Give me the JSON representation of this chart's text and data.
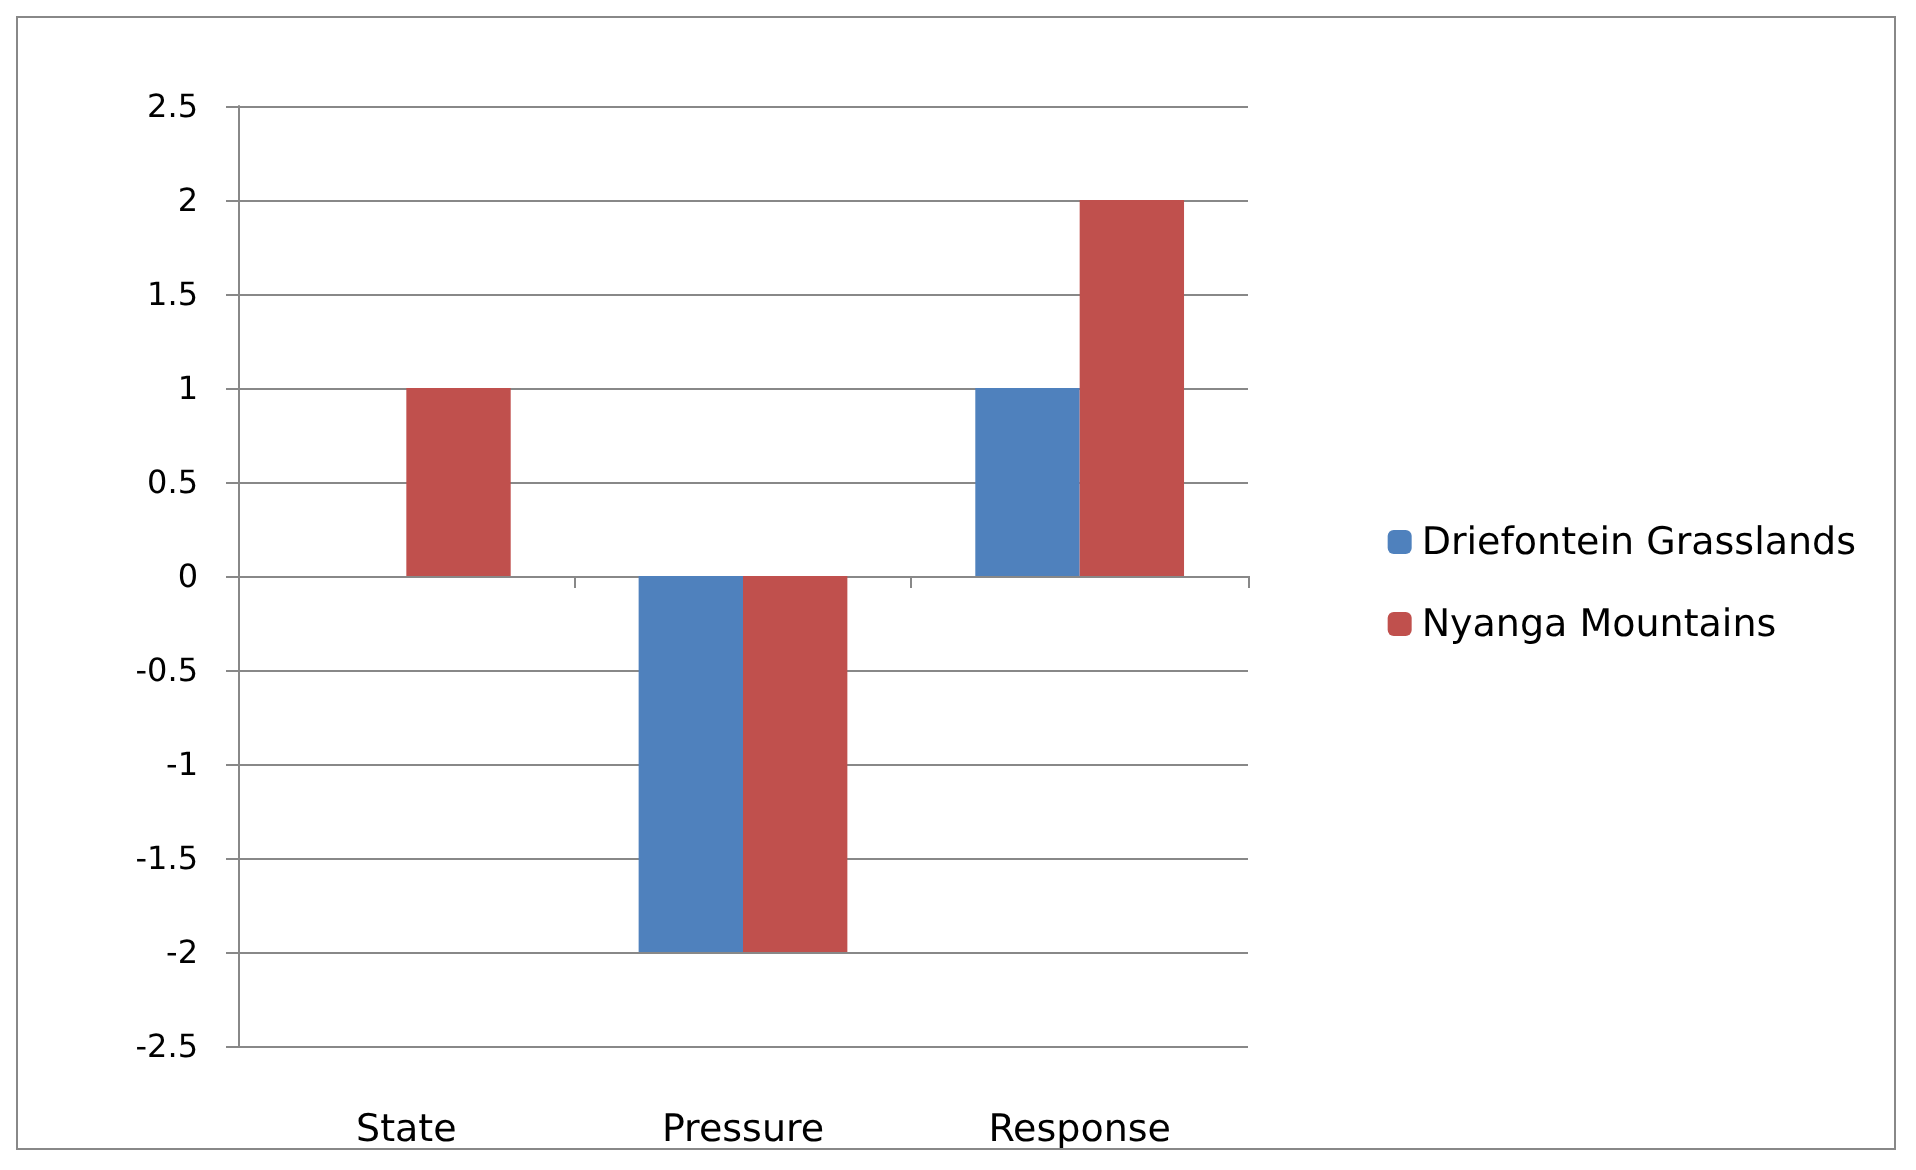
{
  "chart_data": {
    "type": "bar",
    "categories": [
      "State",
      "Pressure",
      "Response"
    ],
    "series": [
      {
        "name": "Driefontein Grasslands",
        "color": "#4f81bd",
        "values": [
          0,
          -2,
          1
        ]
      },
      {
        "name": "Nyanga Mountains",
        "color": "#c0504d",
        "values": [
          1,
          -2,
          2
        ]
      }
    ],
    "ylim": [
      -2.5,
      2.5
    ],
    "yticks": [
      -2.5,
      -2,
      -1.5,
      -1,
      -0.5,
      0,
      0.5,
      1,
      1.5,
      2,
      2.5
    ],
    "grid": "y",
    "legend": "right"
  }
}
